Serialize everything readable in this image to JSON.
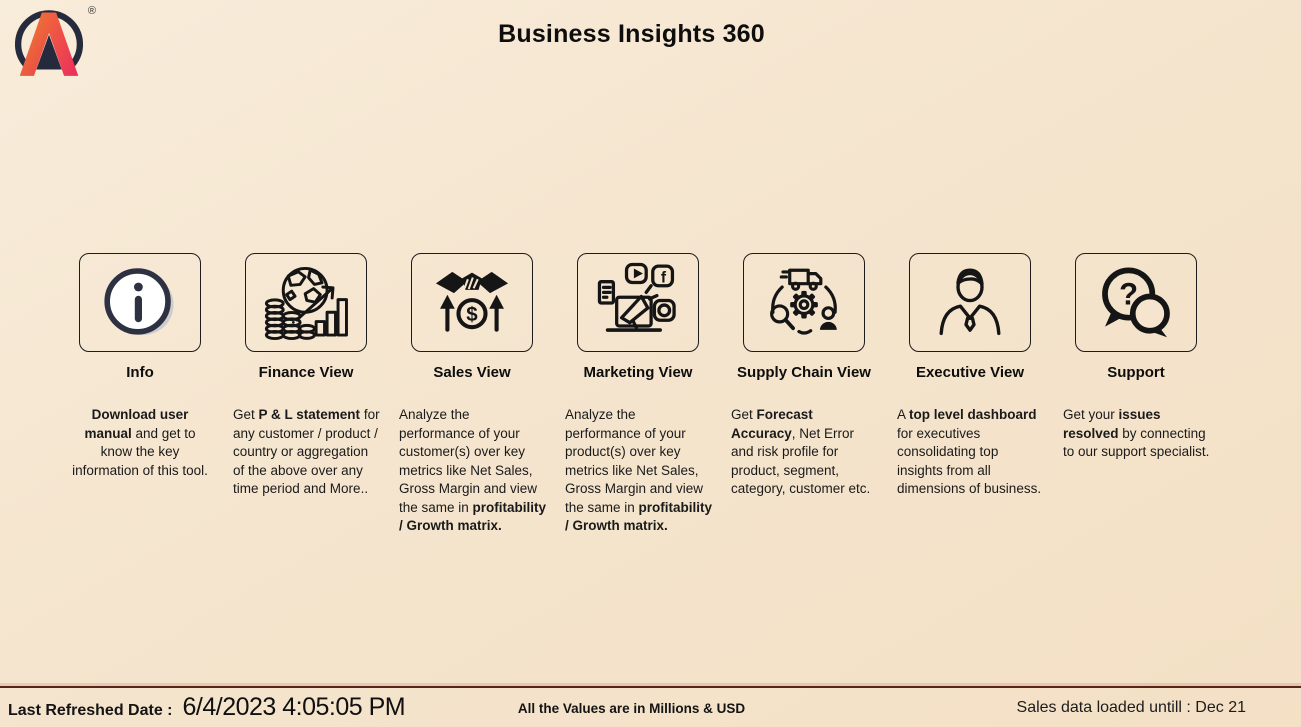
{
  "app": {
    "title": "Business Insights 360"
  },
  "logo": {
    "name": "AtliQ logo",
    "registered_mark": "®"
  },
  "cards": [
    {
      "label": "Info",
      "icon": "info-icon",
      "desc": [
        {
          "text": "Download user manual",
          "bold": true
        },
        {
          "text": " and get to know the key information of this tool.",
          "bold": false
        }
      ]
    },
    {
      "label": "Finance View",
      "icon": "finance-globe-coins-chart-icon",
      "desc": [
        {
          "text": "Get ",
          "bold": false
        },
        {
          "text": "P & L statement",
          "bold": true
        },
        {
          "text": " for any customer / product / country or aggregation of the above over any time period and More..",
          "bold": false
        }
      ]
    },
    {
      "label": "Sales View",
      "icon": "sales-handshake-dollar-arrows-icon",
      "desc": [
        {
          "text": "Analyze the performance of your customer(s) over key metrics like Net Sales, Gross Margin and view the same in ",
          "bold": false
        },
        {
          "text": "profitability / Growth matrix.",
          "bold": true
        }
      ]
    },
    {
      "label": "Marketing View",
      "icon": "marketing-megaphone-social-icon",
      "desc": [
        {
          "text": "Analyze the performance of your product(s) over key metrics like Net Sales, Gross Margin and view the same in ",
          "bold": false
        },
        {
          "text": "profitability / Growth matrix.",
          "bold": true
        }
      ]
    },
    {
      "label": "Supply Chain View",
      "icon": "supply-chain-cycle-icon",
      "desc": [
        {
          "text": "Get ",
          "bold": false
        },
        {
          "text": "Forecast Accuracy",
          "bold": true
        },
        {
          "text": ", Net Error and risk profile for product, segment, category, customer etc.",
          "bold": false
        }
      ]
    },
    {
      "label": "Executive View",
      "icon": "executive-person-icon",
      "desc": [
        {
          "text": "A ",
          "bold": false
        },
        {
          "text": "top level dashboard",
          "bold": true
        },
        {
          "text": " for executives consolidating top insights from all dimensions of business.",
          "bold": false
        }
      ]
    },
    {
      "label": "Support",
      "icon": "support-chat-question-icon",
      "desc": [
        {
          "text": "Get your ",
          "bold": false
        },
        {
          "text": "issues resolved",
          "bold": true
        },
        {
          "text": " by connecting to our support specialist.",
          "bold": false
        }
      ]
    }
  ],
  "footer": {
    "last_refreshed_label": "Last Refreshed Date :",
    "last_refreshed_value": "6/4/2023 4:05:05 PM",
    "values_note": "All the Values are in Millions & USD",
    "data_loaded_note": "Sales data loaded untill : Dec 21"
  },
  "colors": {
    "background": "#f5e5ce",
    "text": "#141414",
    "footer_line": "#5c2415",
    "logo_orange": "#f07a2e",
    "logo_red": "#e9324e",
    "logo_navy": "#252a3d",
    "icon_stroke": "#151515"
  }
}
